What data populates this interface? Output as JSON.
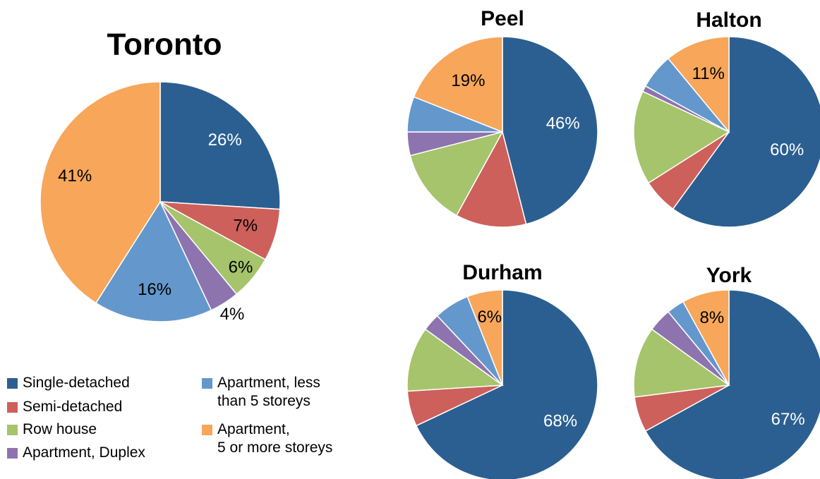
{
  "chart_data": [
    {
      "type": "pie",
      "title": "Toronto",
      "categories": [
        "Single-detached",
        "Semi-detached",
        "Row house",
        "Apartment, Duplex",
        "Apartment, less\nthan 5 storeys",
        "Apartment,\n5 or more storeys"
      ],
      "values": [
        26,
        7,
        6,
        4,
        16,
        41
      ],
      "value_labels": [
        "26%",
        "7%",
        "6%",
        "4%",
        "16%",
        "41%"
      ],
      "colors": [
        "#2b5f91",
        "#cd605b",
        "#a5c46b",
        "#8d74ae",
        "#6498cc",
        "#f7a65a"
      ]
    },
    {
      "type": "pie",
      "title": "Peel",
      "categories": [
        "Single-detached",
        "Semi-detached",
        "Row house",
        "Apartment, Duplex",
        "Apartment, less\nthan 5 storeys",
        "Apartment,\n5 or more storeys"
      ],
      "values": [
        46,
        12,
        13,
        4,
        6,
        19
      ],
      "value_labels": [
        "46%",
        null,
        null,
        null,
        null,
        "19%"
      ],
      "colors": [
        "#2b5f91",
        "#cd605b",
        "#a5c46b",
        "#8d74ae",
        "#6498cc",
        "#f7a65a"
      ]
    },
    {
      "type": "pie",
      "title": "Halton",
      "categories": [
        "Single-detached",
        "Semi-detached",
        "Row house",
        "Apartment, Duplex",
        "Apartment, less\nthan 5 storeys",
        "Apartment,\n5 or more storeys"
      ],
      "values": [
        60,
        6,
        16,
        1,
        6,
        11
      ],
      "value_labels": [
        "60%",
        null,
        null,
        null,
        null,
        "11%"
      ],
      "colors": [
        "#2b5f91",
        "#cd605b",
        "#a5c46b",
        "#8d74ae",
        "#6498cc",
        "#f7a65a"
      ]
    },
    {
      "type": "pie",
      "title": "Durham",
      "categories": [
        "Single-detached",
        "Semi-detached",
        "Row house",
        "Apartment, Duplex",
        "Apartment, less\nthan 5 storeys",
        "Apartment,\n5 or more storeys"
      ],
      "values": [
        68,
        6,
        11,
        3,
        6,
        6
      ],
      "value_labels": [
        "68%",
        null,
        null,
        null,
        null,
        "6%"
      ],
      "colors": [
        "#2b5f91",
        "#cd605b",
        "#a5c46b",
        "#8d74ae",
        "#6498cc",
        "#f7a65a"
      ]
    },
    {
      "type": "pie",
      "title": "York",
      "categories": [
        "Single-detached",
        "Semi-detached",
        "Row house",
        "Apartment, Duplex",
        "Apartment, less\nthan 5 storeys",
        "Apartment,\n5 or more storeys"
      ],
      "values": [
        67,
        6,
        12,
        4,
        3,
        8
      ],
      "value_labels": [
        "67%",
        null,
        null,
        null,
        null,
        "8%"
      ],
      "colors": [
        "#2b5f91",
        "#cd605b",
        "#a5c46b",
        "#8d74ae",
        "#6498cc",
        "#f7a65a"
      ]
    }
  ]
}
